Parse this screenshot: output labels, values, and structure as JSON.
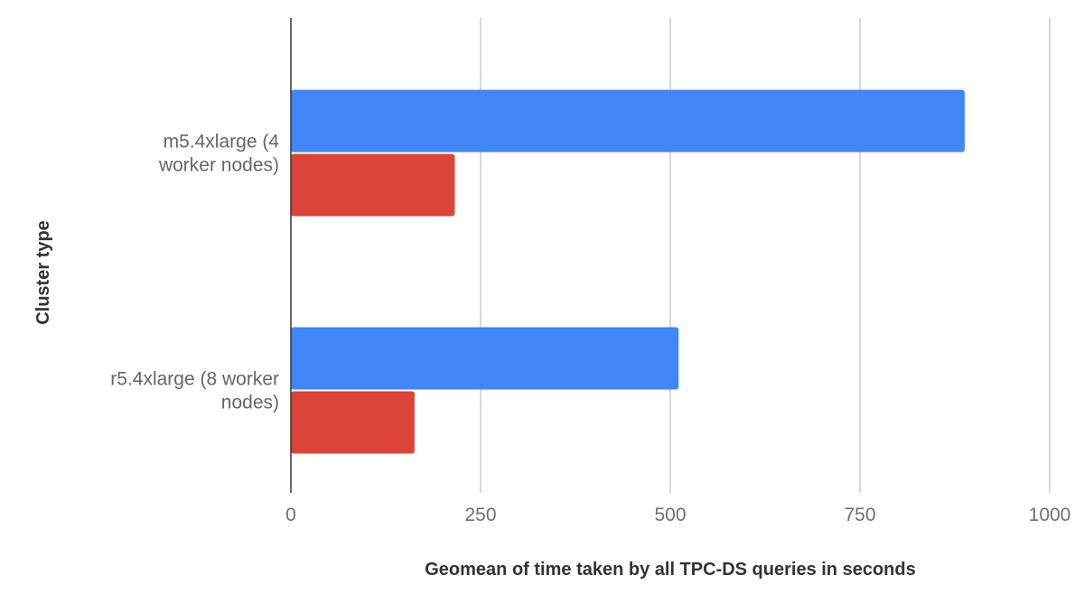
{
  "chart_data": {
    "type": "bar",
    "orientation": "horizontal",
    "categories": [
      "m5.4xlarge (4 worker nodes)",
      "r5.4xlarge (8 worker nodes)"
    ],
    "category_lines": [
      [
        "m5.4xlarge (4",
        "worker nodes)"
      ],
      [
        "r5.4xlarge (8 worker",
        "nodes)"
      ]
    ],
    "series": [
      {
        "color": "#4285f4",
        "values": [
          888,
          511
        ]
      },
      {
        "color": "#db4437",
        "values": [
          216,
          163
        ]
      }
    ],
    "title": "",
    "xlabel": "Geomean of time taken by all TPC-DS queries in seconds",
    "ylabel": "Cluster type",
    "xlim": [
      0,
      1000
    ],
    "xticks": [
      "0",
      "250",
      "500",
      "750",
      "1000"
    ],
    "grid": true,
    "legend": "none"
  }
}
